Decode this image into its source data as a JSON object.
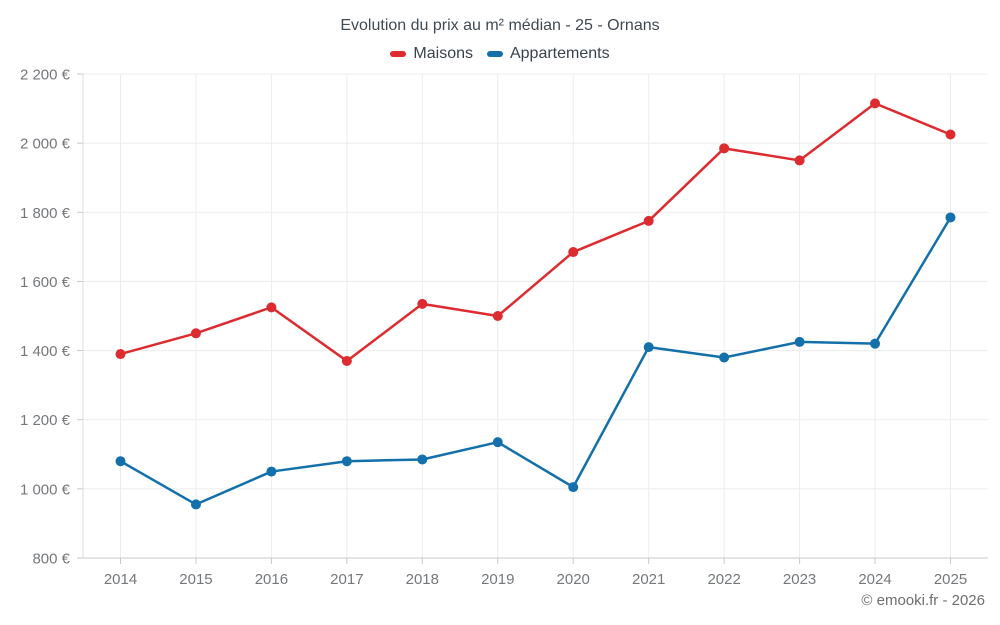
{
  "header": {
    "title": "Evolution du prix au m² médian - 25 - Ornans"
  },
  "footer": {
    "credit": "© emooki.fr - 2026"
  },
  "chart_data": {
    "type": "line",
    "title": "Evolution du prix au m² médian - 25 - Ornans",
    "categories": [
      "2014",
      "2015",
      "2016",
      "2017",
      "2018",
      "2019",
      "2020",
      "2021",
      "2022",
      "2023",
      "2024",
      "2025"
    ],
    "series": [
      {
        "name": "Maisons",
        "color": "#dc2c30",
        "values": [
          1390,
          1450,
          1525,
          1370,
          1535,
          1500,
          1685,
          1775,
          1985,
          1950,
          2115,
          2025
        ]
      },
      {
        "name": "Appartements",
        "color": "#1370aa",
        "values": [
          1080,
          955,
          1050,
          1080,
          1085,
          1135,
          1005,
          1410,
          1380,
          1425,
          1420,
          1785
        ]
      }
    ],
    "xlabel": "",
    "ylabel": "",
    "ylim": [
      800,
      2200
    ],
    "ytick_step": 200,
    "ytick_suffix": " €",
    "grid": true,
    "legend_position": "top",
    "grid_color": "#ececec",
    "axis_color": "#c9c9c9",
    "label_color": "#75787b"
  }
}
